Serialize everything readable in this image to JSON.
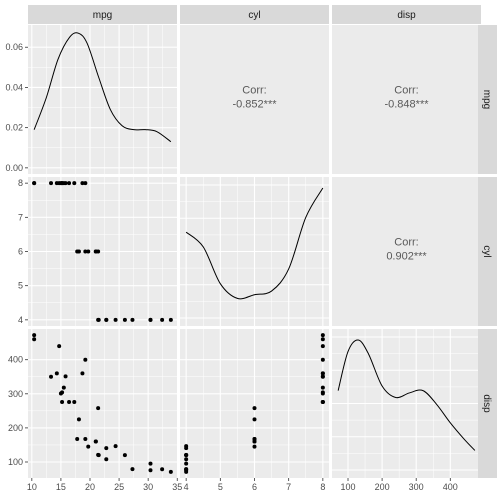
{
  "chart_data": {
    "type": "pairs",
    "variables": [
      "mpg",
      "cyl",
      "disp"
    ],
    "colors": {
      "panel_bg": "#ebebeb",
      "grid_major": "#ffffff",
      "strip_bg": "#d9d9d9",
      "points": "#000000",
      "corr_text": "#595959",
      "tick_text": "#4d4d4d"
    },
    "grid": true,
    "axes": {
      "mpg": {
        "lim": [
          10.4,
          33.9
        ],
        "ticks": [
          10,
          15,
          20,
          25,
          30,
          35
        ]
      },
      "cyl": {
        "lim": [
          4,
          8
        ],
        "ticks": [
          4,
          5,
          6,
          7,
          8
        ]
      },
      "disp": {
        "lim": [
          71.1,
          472
        ],
        "ticks": [
          100,
          200,
          300,
          400
        ]
      },
      "density_y": {
        "lim": [
          0,
          0.068
        ],
        "ticks": [
          "0.00",
          "0.02",
          "0.04",
          "0.06"
        ]
      }
    },
    "correlations": [
      {
        "x": "mpg",
        "y": "cyl",
        "label": "Corr:",
        "value": "-0.852***"
      },
      {
        "x": "mpg",
        "y": "disp",
        "label": "Corr:",
        "value": "-0.848***"
      },
      {
        "x": "cyl",
        "y": "disp",
        "label": "Corr:",
        "value": "0.902***"
      }
    ],
    "density_curves": {
      "mpg": {
        "x": [
          10.4,
          12.5,
          14.5,
          16.5,
          18,
          19.5,
          21.5,
          23.5,
          25.5,
          27.5,
          29.5,
          31.5,
          33.9
        ],
        "y": [
          0.019,
          0.035,
          0.054,
          0.065,
          0.067,
          0.062,
          0.045,
          0.029,
          0.021,
          0.019,
          0.019,
          0.018,
          0.013
        ]
      },
      "cyl": {
        "x": [
          4,
          4.5,
          5,
          5.5,
          6,
          6.5,
          7,
          7.5,
          8
        ],
        "y": [
          0.24,
          0.22,
          0.17,
          0.15,
          0.155,
          0.16,
          0.19,
          0.26,
          0.3
        ]
      },
      "disp": {
        "x": [
          71.1,
          100,
          130,
          160,
          200,
          240,
          280,
          320,
          360,
          400,
          440,
          472
        ],
        "y": [
          0.0035,
          0.0052,
          0.0057,
          0.0051,
          0.0037,
          0.0032,
          0.0034,
          0.0035,
          0.0029,
          0.0021,
          0.0014,
          0.0009
        ]
      }
    },
    "points": {
      "mpg": [
        21,
        21,
        22.8,
        21.4,
        18.7,
        18.1,
        14.3,
        24.4,
        22.8,
        19.2,
        17.8,
        16.4,
        17.3,
        15.2,
        10.4,
        10.4,
        14.7,
        32.4,
        30.4,
        33.9,
        21.5,
        15.5,
        15.2,
        13.3,
        19.2,
        27.3,
        26,
        30.4,
        15.8,
        19.7,
        15,
        21.4
      ],
      "cyl": [
        6,
        6,
        4,
        6,
        8,
        6,
        8,
        4,
        4,
        6,
        6,
        8,
        8,
        8,
        8,
        8,
        8,
        4,
        4,
        4,
        4,
        8,
        8,
        8,
        8,
        4,
        4,
        4,
        8,
        6,
        8,
        4
      ],
      "disp": [
        160,
        160,
        108,
        258,
        360,
        225,
        360,
        146.7,
        140.8,
        167.6,
        167.6,
        275.8,
        275.8,
        275.8,
        472,
        460,
        440,
        78.7,
        75.7,
        71.1,
        120.1,
        318,
        304,
        350,
        400,
        79,
        120.3,
        95.1,
        351,
        145,
        301,
        121
      ]
    }
  }
}
